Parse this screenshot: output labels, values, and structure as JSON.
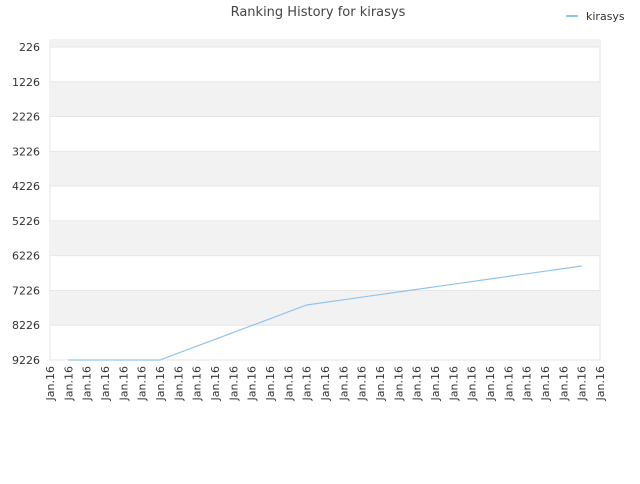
{
  "chart_data": {
    "type": "line",
    "title": "Ranking History for kirasys",
    "categories": [
      "Jan.16",
      "Jan.16",
      "Jan.16",
      "Jan.16",
      "Jan.16",
      "Jan.16",
      "Jan.16",
      "Jan.16",
      "Jan.16",
      "Jan.16",
      "Jan.16",
      "Jan.16",
      "Jan.16",
      "Jan.16",
      "Jan.16",
      "Jan.16",
      "Jan.16",
      "Jan.16",
      "Jan.16",
      "Jan.16",
      "Jan.16",
      "Jan.16",
      "Jan.16",
      "Jan.16",
      "Jan.16",
      "Jan.16",
      "Jan.16",
      "Jan.16",
      "Jan.16",
      "Jan.16",
      "Jan.16"
    ],
    "series": [
      {
        "name": "kirasys",
        "color": "#90c4ee",
        "values": [
          null,
          9226,
          9226,
          9226,
          9226,
          9226,
          9226,
          9028,
          8830,
          8633,
          8435,
          8237,
          8040,
          7842,
          7644,
          7569,
          7495,
          7420,
          7345,
          7270,
          7196,
          7121,
          7046,
          6971,
          6897,
          6822,
          6747,
          6672,
          6598,
          6523,
          null
        ]
      }
    ],
    "ylim": [
      25,
      9226
    ],
    "y_reversed": true,
    "yticks": [
      226,
      1226,
      2226,
      3226,
      4226,
      5226,
      6226,
      7226,
      8226,
      9226
    ],
    "grid": true,
    "legend": "top-right"
  }
}
